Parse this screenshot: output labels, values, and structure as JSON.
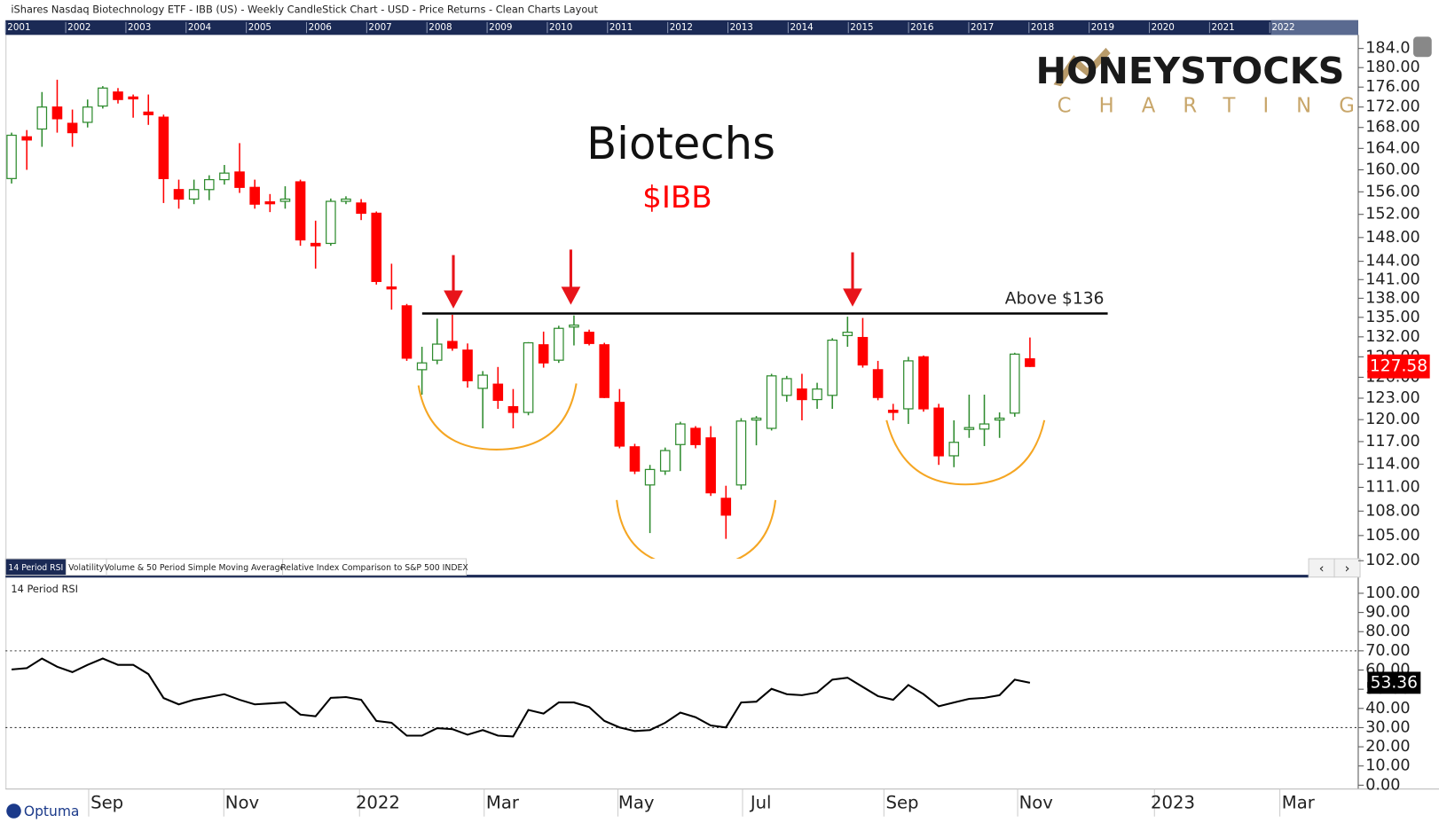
{
  "header": "iShares Nasdaq Biotechnology ETF - IBB (US) - Weekly CandleStick Chart - USD - Price Returns - Clean Charts Layout",
  "timeline": [
    "2001",
    "2002",
    "2003",
    "2004",
    "2005",
    "2006",
    "2007",
    "2008",
    "2009",
    "2010",
    "2011",
    "2012",
    "2013",
    "2014",
    "2015",
    "2016",
    "2017",
    "2018",
    "2019",
    "2020",
    "2021",
    "2022"
  ],
  "logo": {
    "name": "HONEYSTOCKS",
    "tagline": "CHARTING"
  },
  "tabs": [
    "14 Period RSI",
    "Volatility",
    "Volume & 50 Period Simple Moving Average",
    "Relative Index Comparison to S&P 500 INDEX"
  ],
  "footer_logo": "Optuma",
  "chart_data": [
    {
      "type": "candlestick",
      "title": "Biotechs",
      "subtitle": "$IBB",
      "up_color": "#2e8b2e",
      "down_color": "#ff0000",
      "log_scale": true,
      "resistance": {
        "label": "Above $136",
        "value": 135.6
      },
      "open": [
        158.4,
        166.2,
        167.7,
        172,
        168.8,
        169,
        172.2,
        175,
        174,
        171,
        170,
        156.4,
        154.7,
        156.4,
        158.2,
        159.6,
        156.8,
        154.2,
        154.3,
        157.8,
        147,
        147,
        154.3,
        154,
        152.2,
        139.8,
        136.8,
        127.1,
        128.5,
        131.3,
        130,
        124.4,
        125,
        121.8,
        121,
        130.8,
        128.5,
        133.5,
        132.7,
        130.8,
        122.4,
        116.3,
        111.3,
        113.1,
        116.6,
        118.8,
        117.5,
        109.6,
        111.3,
        120,
        118.8,
        123.4,
        124.3,
        122.8,
        123.4,
        132.2,
        131.9,
        127.1,
        121.3,
        121.5,
        129,
        121.6,
        115.1,
        118.7,
        118.7,
        120,
        120.9,
        128.7
      ],
      "high": [
        167,
        167.5,
        175,
        177.5,
        171.5,
        173.5,
        176.2,
        175.8,
        174.5,
        174.5,
        170.5,
        158.2,
        158.2,
        159,
        160.9,
        165,
        158.2,
        155.6,
        157,
        158.2,
        150.9,
        154.8,
        155.2,
        154.7,
        152.5,
        143.6,
        137.1,
        130.5,
        134.8,
        135.4,
        131,
        126.9,
        127.5,
        124.3,
        131.2,
        132.8,
        133.7,
        135.3,
        133.1,
        131.1,
        124.3,
        116.7,
        113.9,
        116.2,
        119.7,
        119.1,
        119.1,
        111.2,
        120.2,
        120.5,
        126.5,
        126.2,
        126.5,
        125.2,
        131.8,
        135.1,
        134.9,
        128.4,
        122.2,
        129,
        129.2,
        122.2,
        119.9,
        123.5,
        123.5,
        121,
        129.6,
        131.9
      ],
      "low": [
        157.5,
        160,
        164.3,
        167,
        164.3,
        168,
        171.7,
        172.7,
        169.9,
        168.5,
        154,
        153,
        153.8,
        154.5,
        157.3,
        155.8,
        153,
        152.4,
        153,
        146.6,
        142.8,
        146.6,
        153.8,
        151,
        140.2,
        136.2,
        128.4,
        123.5,
        127.9,
        129.9,
        124.5,
        118.8,
        121.5,
        118.8,
        120.6,
        127.4,
        128.1,
        130.7,
        130.7,
        123,
        116.1,
        112.7,
        105.3,
        112.6,
        113.1,
        116.1,
        109.9,
        104.6,
        110.7,
        116.5,
        118.5,
        122.5,
        119.9,
        121.5,
        121.5,
        130.5,
        127.4,
        122.7,
        119.9,
        119.4,
        121.1,
        113.9,
        113.6,
        117.5,
        116.4,
        117.5,
        120.4,
        127.5
      ],
      "close": [
        166.5,
        165.6,
        172,
        169.7,
        167,
        172,
        175.8,
        173.5,
        173.8,
        170.5,
        158.4,
        154.7,
        156.4,
        158.2,
        159.4,
        156.8,
        153.8,
        154,
        154.7,
        147.6,
        146.6,
        154.3,
        154.7,
        152.2,
        140.7,
        139.5,
        128.8,
        128.1,
        130.9,
        130.3,
        125.5,
        126.3,
        122.7,
        121,
        131.1,
        128.1,
        133.3,
        133.8,
        131,
        123.1,
        116.4,
        113.1,
        113.3,
        115.8,
        119.4,
        116.6,
        110.3,
        107.5,
        119.8,
        120.2,
        126.2,
        125.8,
        122.8,
        124.3,
        131.5,
        132.7,
        127.8,
        123.1,
        121,
        128.4,
        121.5,
        115.1,
        116.9,
        118.9,
        119.4,
        120.2,
        129.4,
        127.58
      ],
      "xlim": [
        -0.4,
        88.6
      ],
      "ylim": [
        100.2,
        186.9
      ],
      "yticks": [
        {
          "value": 102,
          "label": "102.00"
        },
        {
          "value": 105,
          "label": "105.00"
        },
        {
          "value": 108,
          "label": "108.00"
        },
        {
          "value": 111,
          "label": "111.00"
        },
        {
          "value": 114,
          "label": "114.00"
        },
        {
          "value": 117,
          "label": "117.00"
        },
        {
          "value": 120,
          "label": "120.00"
        },
        {
          "value": 123,
          "label": "123.00"
        },
        {
          "value": 126,
          "label": "126.00"
        },
        {
          "value": 129,
          "label": "129.00"
        },
        {
          "value": 132,
          "label": "132.00"
        },
        {
          "value": 135,
          "label": "135.00"
        },
        {
          "value": 138,
          "label": "138.00"
        },
        {
          "value": 141,
          "label": "141.00"
        },
        {
          "value": 144,
          "label": "144.00"
        },
        {
          "value": 148,
          "label": "148.00"
        },
        {
          "value": 152,
          "label": "152.00"
        },
        {
          "value": 156,
          "label": "156.00"
        },
        {
          "value": 160,
          "label": "160.00"
        },
        {
          "value": 164,
          "label": "164.00"
        },
        {
          "value": 168,
          "label": "168.00"
        },
        {
          "value": 172,
          "label": "172.00"
        },
        {
          "value": 176,
          "label": "176.00"
        },
        {
          "value": 180,
          "label": "180.00"
        },
        {
          "value": 184,
          "label": "184.0"
        }
      ]
    },
    {
      "type": "line",
      "title": "14 Period RSI",
      "color": "#000000",
      "values": [
        60.3,
        61,
        66,
        61.7,
        58.9,
        62.7,
        66,
        62.7,
        62.7,
        57.9,
        45.4,
        42.1,
        44.5,
        45.9,
        47.4,
        44.5,
        42.1,
        42.6,
        43.1,
        36.8,
        35.9,
        45.5,
        45.9,
        44.5,
        33.5,
        32.5,
        25.8,
        25.8,
        29.7,
        29.2,
        26.3,
        28.7,
        25.8,
        25.4,
        39.2,
        37.3,
        43.1,
        43.1,
        40.7,
        33.5,
        30.1,
        28.2,
        28.7,
        32.5,
        37.8,
        35.4,
        31.1,
        30.1,
        43.1,
        43.5,
        50.2,
        47.4,
        46.9,
        48.3,
        55,
        56,
        51.2,
        46.4,
        44.5,
        52.2,
        47.4,
        41.1,
        43.1,
        45,
        45.5,
        46.9,
        55,
        53.36
      ],
      "levels": [
        70,
        30
      ],
      "xlim": [
        -0.4,
        88.6
      ],
      "ylim": [
        -2,
        107
      ],
      "yticks": [
        {
          "value": 0,
          "label": "0.00"
        },
        {
          "value": 10,
          "label": "10.00"
        },
        {
          "value": 20,
          "label": "20.00"
        },
        {
          "value": 30,
          "label": "30.00"
        },
        {
          "value": 40,
          "label": "40.00"
        },
        {
          "value": 50,
          "label": "50.00"
        },
        {
          "value": 60,
          "label": "60.00"
        },
        {
          "value": 70,
          "label": "70.00"
        },
        {
          "value": 80,
          "label": "80.00"
        },
        {
          "value": 90,
          "label": "90.00"
        },
        {
          "value": 100,
          "label": "100.00"
        }
      ],
      "xticks": [
        {
          "value": 6.28,
          "label": "Sep"
        },
        {
          "value": 15.17,
          "label": "Nov"
        },
        {
          "value": 24.1,
          "label": "2022"
        },
        {
          "value": 32.3,
          "label": "Mar"
        },
        {
          "value": 41.1,
          "label": "May"
        },
        {
          "value": 49.3,
          "label": "Jul"
        },
        {
          "value": 58.6,
          "label": "Sep"
        },
        {
          "value": 67.4,
          "label": "Nov"
        },
        {
          "value": 76.4,
          "label": "2023"
        },
        {
          "value": 84.65,
          "label": "Mar"
        }
      ]
    }
  ]
}
